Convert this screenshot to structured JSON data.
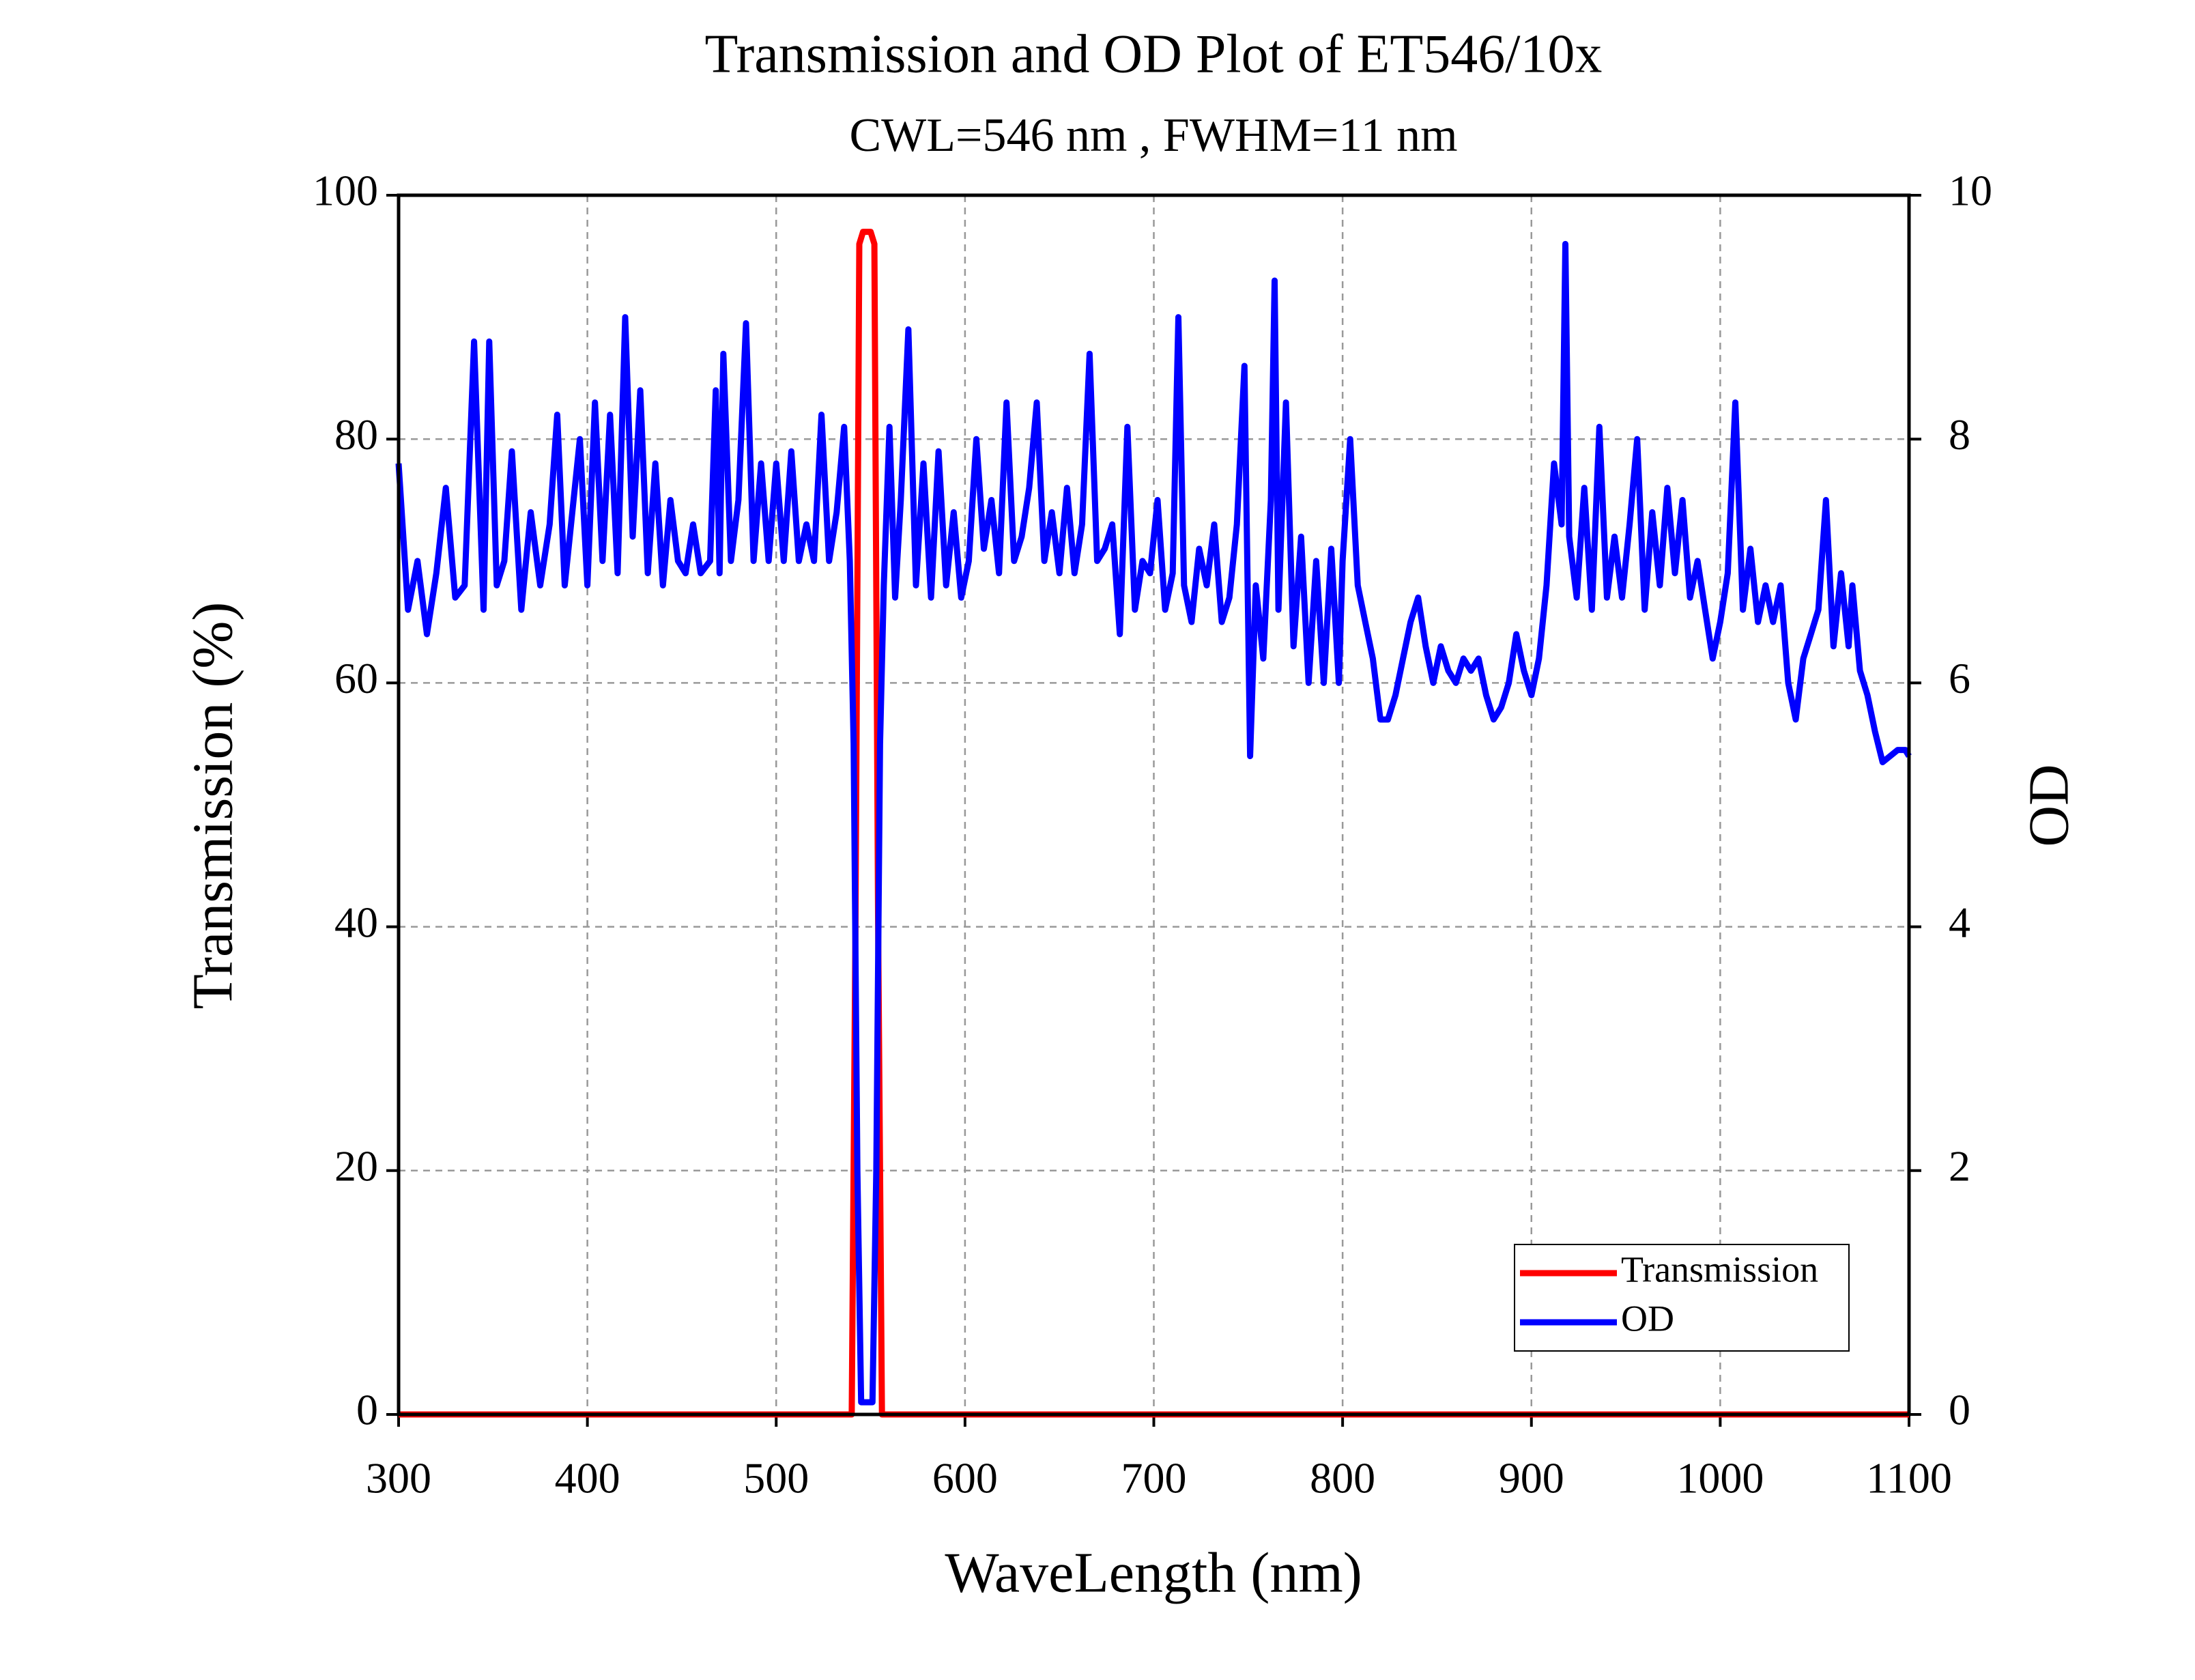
{
  "chart_data": {
    "type": "line",
    "title": "Transmission and OD Plot of ET546/10x",
    "subtitle": "CWL=546 nm , FWHM=11 nm",
    "x_label": "WaveLength (nm)",
    "y_label": "Transmission (%)",
    "y2_label": "OD",
    "xlim": [
      300,
      1100
    ],
    "xticks": [
      300,
      400,
      500,
      600,
      700,
      800,
      900,
      1000,
      1100
    ],
    "ylim": [
      0,
      100
    ],
    "yticks": [
      0,
      20,
      40,
      60,
      80,
      100
    ],
    "y2lim": [
      0,
      10
    ],
    "y2ticks": [
      0,
      2,
      4,
      6,
      8,
      10
    ],
    "grid": true,
    "legend": "lower right",
    "series": [
      {
        "name": "Transmission",
        "color": "#ff0000",
        "x": [
          300,
          540,
          542,
          544,
          546,
          548,
          550,
          552,
          554,
          556,
          1100
        ],
        "values": [
          0,
          0,
          40,
          96,
          97,
          97,
          97,
          96,
          40,
          0,
          0
        ]
      },
      {
        "name": "OD",
        "color": "#0000ff",
        "axis": "y2",
        "x": [
          300,
          305,
          310,
          315,
          320,
          325,
          330,
          335,
          340,
          345,
          348,
          352,
          356,
          360,
          365,
          370,
          375,
          380,
          384,
          388,
          392,
          396,
          400,
          404,
          408,
          412,
          416,
          420,
          424,
          428,
          432,
          436,
          440,
          444,
          448,
          452,
          456,
          460,
          465,
          468,
          470,
          472,
          476,
          480,
          484,
          488,
          492,
          496,
          500,
          504,
          508,
          512,
          516,
          520,
          524,
          528,
          532,
          536,
          539,
          541,
          543,
          545,
          547,
          549,
          551,
          553,
          555,
          557,
          560,
          563,
          566,
          570,
          574,
          578,
          582,
          586,
          590,
          594,
          598,
          602,
          606,
          610,
          614,
          618,
          622,
          626,
          630,
          634,
          638,
          642,
          646,
          650,
          654,
          658,
          662,
          666,
          670,
          674,
          678,
          682,
          686,
          690,
          694,
          698,
          702,
          706,
          710,
          713,
          716,
          720,
          724,
          728,
          732,
          736,
          740,
          744,
          748,
          751,
          754,
          758,
          762,
          764,
          766,
          770,
          774,
          778,
          782,
          786,
          790,
          794,
          798,
          800,
          804,
          808,
          812,
          816,
          820,
          824,
          828,
          832,
          836,
          840,
          844,
          848,
          852,
          856,
          860,
          864,
          868,
          872,
          876,
          880,
          884,
          888,
          892,
          896,
          900,
          904,
          908,
          912,
          916,
          918,
          920,
          924,
          928,
          932,
          936,
          940,
          944,
          948,
          952,
          956,
          960,
          964,
          968,
          972,
          976,
          980,
          984,
          988,
          992,
          996,
          1000,
          1004,
          1008,
          1012,
          1016,
          1020,
          1024,
          1028,
          1032,
          1036,
          1040,
          1044,
          1048,
          1052,
          1056,
          1060,
          1064,
          1068,
          1070,
          1074,
          1078,
          1082,
          1086,
          1090,
          1094,
          1098,
          1100
        ],
        "values": [
          7.8,
          6.6,
          7.0,
          6.4,
          6.9,
          7.6,
          6.7,
          6.8,
          8.8,
          6.6,
          8.8,
          6.8,
          7.0,
          7.9,
          6.6,
          7.4,
          6.8,
          7.3,
          8.2,
          6.8,
          7.4,
          8.0,
          6.8,
          8.3,
          7.0,
          8.2,
          6.9,
          9.0,
          7.2,
          8.4,
          6.9,
          7.8,
          6.8,
          7.5,
          7.0,
          6.9,
          7.3,
          6.9,
          7.0,
          8.4,
          6.9,
          8.7,
          7.0,
          7.5,
          8.95,
          7.0,
          7.8,
          7.0,
          7.8,
          7.0,
          7.9,
          7.0,
          7.3,
          7.0,
          8.2,
          7.0,
          7.4,
          8.1,
          7.0,
          5.5,
          2.0,
          0.1,
          0.1,
          0.1,
          0.1,
          2.0,
          5.5,
          6.8,
          8.1,
          6.7,
          7.5,
          8.9,
          6.8,
          7.8,
          6.7,
          7.9,
          6.8,
          7.4,
          6.7,
          7.0,
          8.0,
          7.1,
          7.5,
          6.9,
          8.3,
          7.0,
          7.2,
          7.6,
          8.3,
          7.0,
          7.4,
          6.9,
          7.6,
          6.9,
          7.3,
          8.7,
          7.0,
          7.1,
          7.3,
          6.4,
          8.1,
          6.6,
          7.0,
          6.9,
          7.5,
          6.6,
          6.9,
          9.0,
          6.8,
          6.5,
          7.1,
          6.8,
          7.3,
          6.5,
          6.7,
          7.3,
          8.6,
          5.4,
          6.8,
          6.2,
          7.5,
          9.3,
          6.6,
          8.3,
          6.3,
          7.2,
          6.0,
          7.0,
          6.0,
          7.1,
          6.0,
          7.0,
          8.0,
          6.8,
          6.5,
          6.2,
          5.7,
          5.7,
          5.9,
          6.2,
          6.5,
          6.7,
          6.3,
          6.0,
          6.3,
          6.1,
          6.0,
          6.2,
          6.1,
          6.2,
          5.9,
          5.7,
          5.8,
          6.0,
          6.4,
          6.1,
          5.9,
          6.2,
          6.8,
          7.8,
          7.3,
          9.6,
          7.2,
          6.7,
          7.6,
          6.6,
          8.1,
          6.7,
          7.2,
          6.7,
          7.3,
          8.0,
          6.6,
          7.4,
          6.8,
          7.6,
          6.9,
          7.5,
          6.7,
          7.0,
          6.6,
          6.2,
          6.5,
          6.9,
          8.3,
          6.6,
          7.1,
          6.5,
          6.8,
          6.5,
          6.8,
          6.0,
          5.7,
          6.2,
          6.4,
          6.6,
          7.5,
          6.3,
          6.9,
          6.3,
          6.8,
          6.1,
          5.9,
          5.6,
          5.35,
          5.4,
          5.45,
          5.45,
          5.4
        ]
      }
    ]
  }
}
